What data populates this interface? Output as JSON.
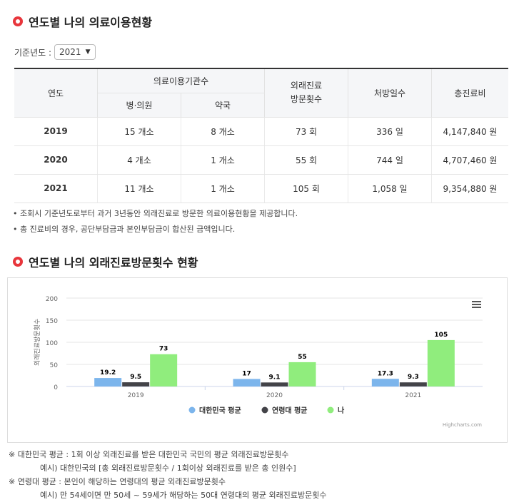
{
  "section1": {
    "title": "연도별 나의 의료이용현황"
  },
  "filter": {
    "label": "기준년도 :",
    "selected": "2021"
  },
  "table": {
    "headers": {
      "year": "연도",
      "institutions": "의료이용기관수",
      "hospital": "병·의원",
      "pharmacy": "약국",
      "outpatient": "외래진료\n방문횟수",
      "prescription_days": "처방일수",
      "total_cost": "총진료비"
    },
    "rows": [
      {
        "year": "2019",
        "hospital": "15 개소",
        "pharmacy": "8 개소",
        "outpatient": "73 회",
        "prescription_days": "336 일",
        "total_cost": "4,147,840 원"
      },
      {
        "year": "2020",
        "hospital": "4 개소",
        "pharmacy": "1 개소",
        "outpatient": "55 회",
        "prescription_days": "744 일",
        "total_cost": "4,707,460 원"
      },
      {
        "year": "2021",
        "hospital": "11 개소",
        "pharmacy": "1 개소",
        "outpatient": "105 회",
        "prescription_days": "1,058 일",
        "total_cost": "9,354,880 원"
      }
    ]
  },
  "notes": [
    "조회시 기준년도로부터 과거 3년동안 외래진료로 방문한 의료이용현황을 제공합니다.",
    "총 진료비의 경우, 공단부담금과 본인부담금이 합산된 금액입니다."
  ],
  "section2": {
    "title": "연도별 나의 외래진료방문횟수 현황"
  },
  "chart_data": {
    "type": "bar",
    "categories": [
      "2019",
      "2020",
      "2021"
    ],
    "series": [
      {
        "name": "대한민국 평균",
        "values": [
          19.2,
          17,
          17.3
        ],
        "color": "#7cb5ec"
      },
      {
        "name": "연령대 평균",
        "values": [
          9.5,
          9.1,
          9.3
        ],
        "color": "#434348"
      },
      {
        "name": "나",
        "values": [
          73,
          55,
          105
        ],
        "color": "#90ed7d"
      }
    ],
    "ylabel": "외래진료방문횟수",
    "ylim": [
      0,
      200
    ],
    "yticks": [
      0,
      50,
      100,
      150,
      200
    ],
    "grid": true,
    "legend_position": "bottom",
    "credit": "Highcharts.com",
    "menu_icon": "hamburger-menu-icon"
  },
  "footnotes": [
    "※ 대한민국 평균 : 1회 이상 외래진료를 받은 대한민국 국민의 평균 외래진료방문횟수",
    "예시) 대한민국의 [총 외래진료방문횟수 / 1회이상 외래진료를 받은 총 인원수]",
    "※ 연령대 평균 : 본인이 해당하는 연령대의 평균 외래진료방문횟수",
    "예시) 만 54세이면 만 50세 ~ 59세가 해당하는 50대 연령대의 평균 외래진료방문횟수"
  ]
}
